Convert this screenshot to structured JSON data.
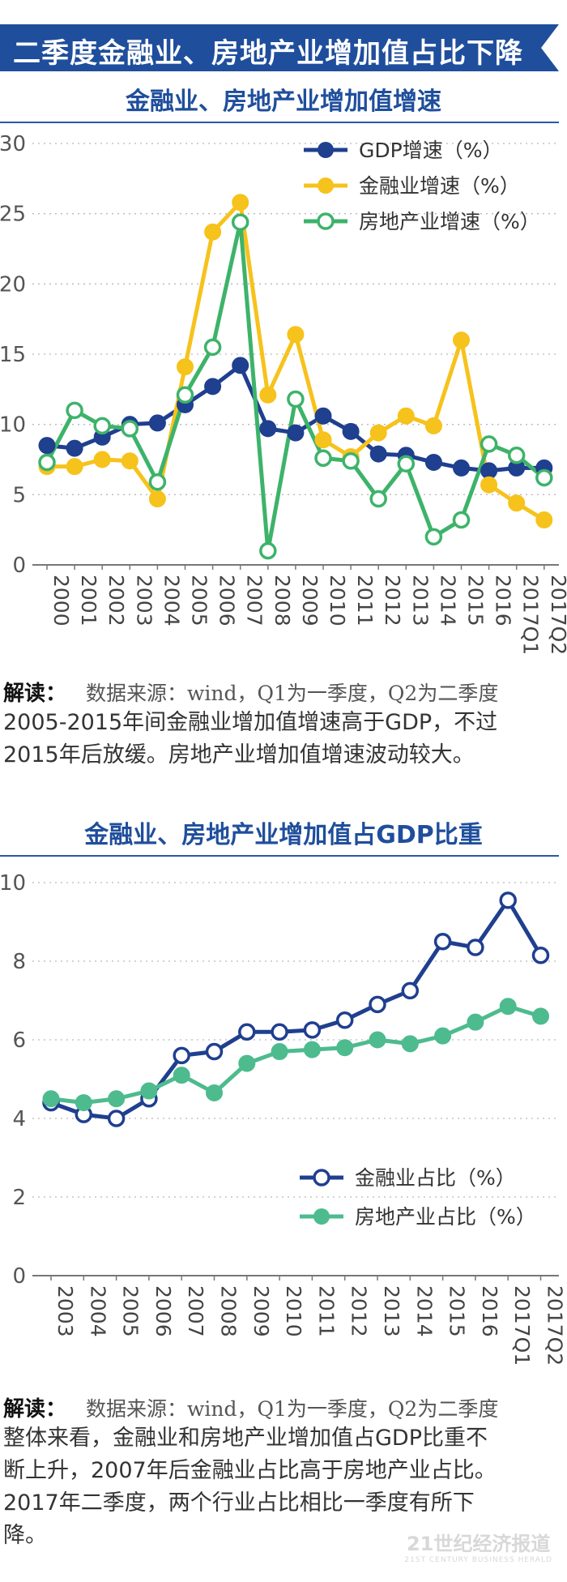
{
  "banner": {
    "title": "二季度金融业、房地产业增加值占比下降",
    "color": "#1f4e9c"
  },
  "chart_data": [
    {
      "type": "line",
      "title": "金融业、房地产业增加值增速",
      "categories": [
        "2000",
        "2001",
        "2002",
        "2003",
        "2004",
        "2005",
        "2006",
        "2007",
        "2008",
        "2009",
        "2010",
        "2011",
        "2012",
        "2013",
        "2014",
        "2015",
        "2016",
        "2017Q1",
        "2017Q2"
      ],
      "ylim": [
        0,
        30
      ],
      "yticks": [
        "0",
        "5",
        "10",
        "15",
        "20",
        "25",
        "30"
      ],
      "grid": true,
      "legend_position": "top-right",
      "series": [
        {
          "name": "GDP增速（%）",
          "color": "#1f3f8f",
          "marker": "filled",
          "values": [
            8.5,
            8.3,
            9.1,
            10.0,
            10.1,
            11.4,
            12.7,
            14.2,
            9.7,
            9.4,
            10.6,
            9.5,
            7.9,
            7.8,
            7.3,
            6.9,
            6.7,
            6.9,
            6.9
          ]
        },
        {
          "name": "金融业增速（%）",
          "color": "#f6c21c",
          "marker": "filled",
          "values": [
            7.0,
            7.0,
            7.5,
            7.4,
            4.7,
            14.1,
            23.7,
            25.8,
            12.1,
            16.4,
            8.9,
            7.7,
            9.4,
            10.6,
            9.9,
            16.0,
            5.7,
            4.4,
            3.2
          ]
        },
        {
          "name": "房地产业增速（%）",
          "color": "#3db36a",
          "marker": "hollow",
          "values": [
            7.3,
            11.0,
            9.9,
            9.7,
            5.9,
            12.1,
            15.5,
            24.4,
            1.0,
            11.8,
            7.6,
            7.4,
            4.7,
            7.2,
            2.0,
            3.2,
            8.6,
            7.8,
            6.2
          ]
        }
      ]
    },
    {
      "type": "line",
      "title": "金融业、房地产业增加值占GDP比重",
      "categories": [
        "2003",
        "2004",
        "2005",
        "2006",
        "2007",
        "2008",
        "2009",
        "2010",
        "2011",
        "2012",
        "2013",
        "2014",
        "2015",
        "2016",
        "2017Q1",
        "2017Q2"
      ],
      "ylim": [
        0,
        10
      ],
      "yticks": [
        "0",
        "2",
        "4",
        "6",
        "8",
        "10"
      ],
      "grid": true,
      "legend_position": "lower-right",
      "series": [
        {
          "name": "金融业占比（%）",
          "color": "#1f3f8f",
          "marker": "hollow",
          "values": [
            4.4,
            4.1,
            4.0,
            4.5,
            5.6,
            5.7,
            6.2,
            6.2,
            6.25,
            6.5,
            6.9,
            7.25,
            8.5,
            8.35,
            9.55,
            8.15
          ]
        },
        {
          "name": "房地产业占比（%）",
          "color": "#4dbb8e",
          "marker": "filled",
          "values": [
            4.5,
            4.4,
            4.5,
            4.7,
            5.1,
            4.65,
            5.4,
            5.7,
            5.75,
            5.8,
            6.0,
            5.9,
            6.1,
            6.45,
            6.85,
            6.6
          ]
        }
      ]
    }
  ],
  "note1": {
    "head": "解读：",
    "source": "数据来源：wind，Q1为一季度，Q2为二季度",
    "line1": "2005-2015年间金融业增加值增速高于GDP，不过",
    "line2": "2015年后放缓。房地产业增加值增速波动较大。"
  },
  "note2": {
    "head": "解读：",
    "source": "数据来源：wind，Q1为一季度，Q2为二季度",
    "line1": "整体来看，金融业和房地产业增加值占GDP比重不",
    "line2": "断上升，2007年后金融业占比高于房地产业占比。",
    "line3": "2017年二季度，两个行业占比相比一季度有所下",
    "line4": "降。"
  },
  "watermark": {
    "main": "21世纪经济报道",
    "sub": "21ST CENTURY BUSINESS HERALD"
  }
}
